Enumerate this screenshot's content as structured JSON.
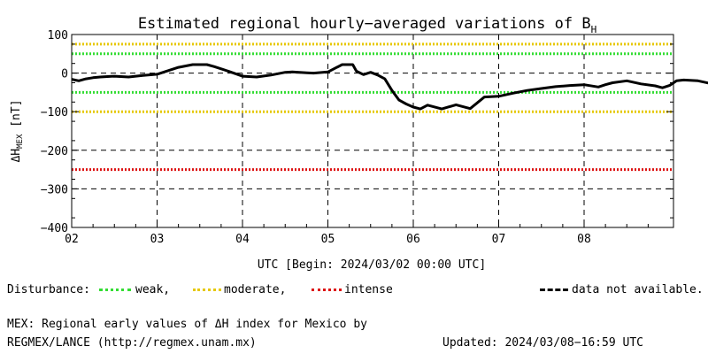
{
  "chart_data": {
    "type": "line",
    "title": "Estimated regional hourly−averaged variations of B",
    "title_subscript": "H",
    "ylabel_prefix": "ΔH",
    "ylabel_subscript": "MEX",
    "ylabel_suffix": " [nT]",
    "xlabel": "UTC [Begin: 2024/03/02 00:00 UTC]",
    "ylim": [
      -400,
      100
    ],
    "xlim_days": [
      0,
      7
    ],
    "y_ticks": [
      100,
      0,
      -100,
      -200,
      -300,
      -400
    ],
    "y_tick_labels": [
      "100",
      "0",
      "−100",
      "−200",
      "−300",
      "−400"
    ],
    "x_ticks": [
      0,
      1,
      2,
      3,
      4,
      5,
      6
    ],
    "x_tick_labels": [
      "02",
      "03",
      "04",
      "05",
      "06",
      "07",
      "08"
    ],
    "dashed_grid_y": [
      0,
      -200,
      -300
    ],
    "grid": true,
    "thresholds": [
      {
        "level": "weak",
        "y": [
          50,
          -50
        ],
        "color": "#33dd33"
      },
      {
        "level": "moderate",
        "y": [
          75,
          -100
        ],
        "color": "#e6c800"
      },
      {
        "level": "intense",
        "y": [
          -250
        ],
        "color": "#dd1111"
      }
    ],
    "series": [
      {
        "color": "#000000",
        "x_hours": [
          0,
          2,
          4,
          6,
          8,
          12,
          16,
          20,
          24,
          30,
          34,
          38,
          40,
          44,
          48,
          52,
          56,
          60,
          62,
          64,
          66,
          68,
          72,
          76,
          79,
          80,
          82,
          84,
          86,
          88,
          90,
          92,
          94,
          96,
          98,
          100,
          104,
          108,
          112,
          116,
          120,
          124,
          128,
          132,
          136,
          140,
          144,
          148,
          150,
          152,
          156,
          160,
          164,
          166,
          168,
          170,
          172,
          176,
          180,
          184,
          188,
          192,
          196,
          200,
          204,
          208,
          212,
          216,
          220,
          224,
          228,
          232,
          236,
          240,
          244,
          248,
          252,
          254,
          256,
          258,
          260,
          264,
          268,
          270,
          272,
          276,
          280,
          284,
          288,
          290,
          292,
          296,
          300,
          304,
          308,
          312,
          316,
          320,
          324,
          328,
          332,
          336,
          340,
          344,
          348,
          352,
          356,
          360,
          362,
          364,
          366,
          368,
          370,
          372,
          374,
          376,
          380,
          384,
          388,
          392,
          396,
          400,
          404,
          408,
          412,
          416,
          420,
          424,
          428,
          432,
          436,
          440,
          444,
          448,
          452,
          456,
          460,
          464
        ],
        "values": [
          -16,
          -20,
          -15,
          -12,
          -10,
          -8,
          -10,
          -6,
          -3,
          15,
          22,
          22,
          17,
          5,
          -8,
          -10,
          -5,
          2,
          3,
          2,
          1,
          0,
          3,
          22,
          22,
          5,
          -4,
          2,
          -5,
          -15,
          -45,
          -70,
          -80,
          -88,
          -93,
          -83,
          -93,
          -82,
          -92,
          -62,
          -60,
          -52,
          -45,
          -40,
          -35,
          -32,
          -30,
          -36,
          -30,
          -25,
          -20,
          -28,
          -33,
          -38,
          -32,
          -20,
          -18,
          -20,
          -28,
          -28,
          -32,
          -27,
          -23,
          -20,
          -12,
          -14,
          -7,
          -6,
          -5,
          -12,
          10,
          8,
          -3,
          8,
          12,
          4,
          12,
          22,
          35,
          50,
          60,
          58,
          40,
          30,
          22,
          8,
          10,
          8,
          15,
          10,
          2,
          3,
          8,
          3,
          10,
          -5,
          12,
          -5,
          -20,
          -15,
          -5,
          -2,
          -10,
          -18,
          -5,
          3,
          0,
          -2,
          0,
          3,
          0,
          -3,
          2,
          0,
          2,
          3,
          3,
          0,
          2,
          0,
          3,
          0,
          2,
          1,
          1,
          0,
          2,
          1,
          0,
          1,
          0,
          2,
          0,
          1,
          1,
          0,
          2,
          1
        ]
      }
    ]
  },
  "legend": {
    "label": "Disturbance:",
    "weak": "weak,",
    "moderate": "moderate,",
    "intense": "intense",
    "na": "data not available."
  },
  "footer": {
    "line1": "MEX: Regional early values of ΔH index for Mexico by",
    "line2": "REGMEX/LANCE (http://regmex.unam.mx)",
    "updated": "Updated: 2024/03/08−16:59 UTC"
  }
}
